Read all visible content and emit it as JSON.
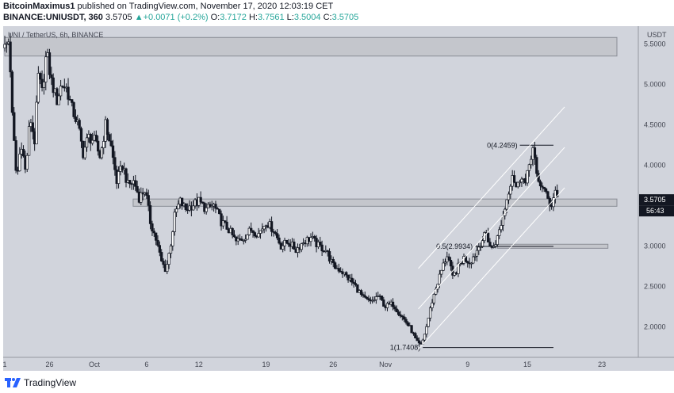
{
  "header": {
    "author": "BitcoinMaximus1",
    "published": "published on TradingView.com, November 17, 2020 12:03:19 CET",
    "symbol": "BINANCE:UNIUSDT, 360",
    "last": "3.5705",
    "arrow": "▲",
    "change": "+0.0071 (+0.2%)",
    "o_label": "O:",
    "o_value": "3.7172",
    "h_label": "H:",
    "h_value": "3.7561",
    "l_label": "L:",
    "l_value": "3.5004",
    "c_label": "C:",
    "c_value": "3.5705"
  },
  "footer": {
    "brand": "TradingView"
  },
  "colors": {
    "plot_bg": "#d1d4dc",
    "candle": "#131722",
    "zone_fill": "#c4c6cc",
    "zone_stroke": "#8a8d96",
    "price_badge": "#131722"
  },
  "chart_data": {
    "type": "candlestick",
    "title": "UNI / TetherUS, 6h, BINANCE",
    "y_unit_label": "USDT",
    "ylim": [
      1.62,
      5.72
    ],
    "yticks": [
      {
        "v": 5.5,
        "label": "5.5000"
      },
      {
        "v": 5.0,
        "label": "5.0000"
      },
      {
        "v": 4.5,
        "label": "4.5000"
      },
      {
        "v": 4.0,
        "label": "4.0000"
      },
      {
        "v": 3.0,
        "label": "3.0000"
      },
      {
        "v": 2.5,
        "label": "2.5000"
      },
      {
        "v": 2.0,
        "label": "2.0000"
      }
    ],
    "xlim": [
      0,
      82
    ],
    "xticks": [
      {
        "d": 0,
        "label": "1"
      },
      {
        "d": 6,
        "label": "26"
      },
      {
        "d": 12,
        "label": "Oct"
      },
      {
        "d": 19,
        "label": "6"
      },
      {
        "d": 26,
        "label": "12"
      },
      {
        "d": 35,
        "label": "19"
      },
      {
        "d": 44,
        "label": "26"
      },
      {
        "d": 51,
        "label": "Nov"
      },
      {
        "d": 62,
        "label": "9"
      },
      {
        "d": 70,
        "label": "15"
      },
      {
        "d": 80,
        "label": "23"
      }
    ],
    "price_path": [
      [
        0,
        5.45
      ],
      [
        0.6,
        5.55
      ],
      [
        1,
        4.6
      ],
      [
        1.6,
        3.8
      ],
      [
        2.2,
        4.3
      ],
      [
        2.8,
        3.9
      ],
      [
        3.4,
        4.6
      ],
      [
        4,
        4.3
      ],
      [
        4.5,
        5.1
      ],
      [
        5,
        4.9
      ],
      [
        5.6,
        5.4
      ],
      [
        6.2,
        5.05
      ],
      [
        7,
        4.8
      ],
      [
        7.6,
        5.0
      ],
      [
        8.3,
        4.95
      ],
      [
        9,
        4.7
      ],
      [
        9.8,
        4.5
      ],
      [
        10.5,
        4.15
      ],
      [
        11.2,
        4.35
      ],
      [
        12,
        4.3
      ],
      [
        12.8,
        4.1
      ],
      [
        13.5,
        4.5
      ],
      [
        14.2,
        4.25
      ],
      [
        15,
        3.8
      ],
      [
        15.8,
        4.0
      ],
      [
        16.5,
        3.75
      ],
      [
        17.3,
        3.8
      ],
      [
        18,
        3.6
      ],
      [
        18.8,
        3.7
      ],
      [
        19.5,
        3.3
      ],
      [
        20.2,
        3.1
      ],
      [
        21,
        2.8
      ],
      [
        21.6,
        2.7
      ],
      [
        22.2,
        3.0
      ],
      [
        22.8,
        3.4
      ],
      [
        23.5,
        3.55
      ],
      [
        24.2,
        3.45
      ],
      [
        25,
        3.5
      ],
      [
        26,
        3.55
      ],
      [
        27,
        3.45
      ],
      [
        28,
        3.5
      ],
      [
        29,
        3.3
      ],
      [
        30,
        3.2
      ],
      [
        31,
        3.05
      ],
      [
        32,
        3.1
      ],
      [
        33,
        3.2
      ],
      [
        34,
        3.15
      ],
      [
        35,
        3.3
      ],
      [
        36,
        3.2
      ],
      [
        37,
        3.0
      ],
      [
        38,
        3.05
      ],
      [
        39,
        2.95
      ],
      [
        40,
        3.05
      ],
      [
        41,
        3.1
      ],
      [
        42,
        3.0
      ],
      [
        43,
        2.95
      ],
      [
        44,
        2.75
      ],
      [
        45,
        2.7
      ],
      [
        46,
        2.6
      ],
      [
        47,
        2.5
      ],
      [
        48,
        2.35
      ],
      [
        49,
        2.3
      ],
      [
        50,
        2.38
      ],
      [
        51,
        2.25
      ],
      [
        52,
        2.28
      ],
      [
        53,
        2.15
      ],
      [
        53.8,
        2.05
      ],
      [
        54.5,
        1.95
      ],
      [
        55.2,
        1.8
      ],
      [
        55.8,
        1.76
      ],
      [
        56.5,
        2.0
      ],
      [
        57.2,
        2.3
      ],
      [
        58,
        2.55
      ],
      [
        58.7,
        2.75
      ],
      [
        59.3,
        2.9
      ],
      [
        60,
        2.6
      ],
      [
        60.8,
        2.75
      ],
      [
        61.5,
        2.85
      ],
      [
        62.3,
        2.8
      ],
      [
        63,
        2.9
      ],
      [
        63.8,
        3.05
      ],
      [
        64.5,
        3.15
      ],
      [
        65.2,
        2.95
      ],
      [
        66,
        3.1
      ],
      [
        66.7,
        3.35
      ],
      [
        67.3,
        3.6
      ],
      [
        68,
        3.9
      ],
      [
        68.6,
        3.7
      ],
      [
        69.2,
        3.9
      ],
      [
        69.8,
        3.75
      ],
      [
        70.4,
        4.1
      ],
      [
        70.8,
        4.22
      ],
      [
        71.3,
        3.8
      ],
      [
        72,
        3.75
      ],
      [
        72.6,
        3.6
      ],
      [
        73.2,
        3.5
      ],
      [
        73.8,
        3.7
      ],
      [
        74.2,
        3.57
      ]
    ],
    "resistance_zone": {
      "y_top": 5.58,
      "y_bottom": 5.35,
      "x_start": 0,
      "x_end": 82
    },
    "support_zone": {
      "y_top": 3.58,
      "y_bottom": 3.49,
      "x_start": 17.2,
      "x_end": 82
    },
    "fib_zone": {
      "y_top": 3.02,
      "y_bottom": 2.97,
      "x_start": 66,
      "x_end": 80.8
    },
    "fib_levels": [
      {
        "label": "0(4.2459)",
        "value": 4.2459,
        "x_start": 69,
        "x_end": 73.5
      },
      {
        "label": "0.5(2.9934)",
        "value": 2.9934,
        "x_start": 63,
        "x_end": 73.5
      },
      {
        "label": "1(1.7408)",
        "value": 1.7408,
        "x_start": 56,
        "x_end": 73.5
      }
    ],
    "channel": {
      "lower": [
        [
          55.4,
          1.72
        ],
        [
          75,
          3.72
        ]
      ],
      "middle": [
        [
          55.4,
          2.22
        ],
        [
          75,
          4.22
        ]
      ],
      "upper": [
        [
          55.4,
          2.72
        ],
        [
          75,
          4.72
        ]
      ]
    },
    "last_price": {
      "value": 3.5705,
      "label": "3.5705",
      "countdown": "56:43"
    }
  }
}
